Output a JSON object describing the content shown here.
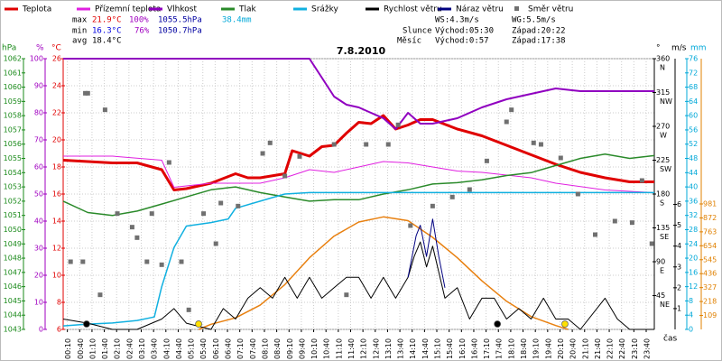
{
  "chart_data": {
    "type": "weather",
    "title": "7.8.2010",
    "x_label": "čas",
    "xlim": [
      0,
      24
    ],
    "xticks": [
      {
        "value": 0.17,
        "label": "00:10"
      },
      {
        "value": 0.67,
        "label": "00:40"
      },
      {
        "value": 1.17,
        "label": "01:10"
      },
      {
        "value": 1.67,
        "label": "01:40"
      },
      {
        "value": 2.17,
        "label": "02:10"
      },
      {
        "value": 2.67,
        "label": "02:40"
      },
      {
        "value": 3.17,
        "label": "03:10"
      },
      {
        "value": 3.67,
        "label": "03:40"
      },
      {
        "value": 4.17,
        "label": "04:10"
      },
      {
        "value": 4.67,
        "label": "04:40"
      },
      {
        "value": 5.17,
        "label": "05:10"
      },
      {
        "value": 5.67,
        "label": "05:40"
      },
      {
        "value": 6.17,
        "label": "06:10"
      },
      {
        "value": 6.67,
        "label": "06:40"
      },
      {
        "value": 7.17,
        "label": "07:10"
      },
      {
        "value": 7.67,
        "label": "07:40"
      },
      {
        "value": 8.17,
        "label": "08:10"
      },
      {
        "value": 8.67,
        "label": "08:40"
      },
      {
        "value": 9.17,
        "label": "09:10"
      },
      {
        "value": 9.67,
        "label": "09:40"
      },
      {
        "value": 10.17,
        "label": "10:10"
      },
      {
        "value": 10.67,
        "label": "10:40"
      },
      {
        "value": 11.17,
        "label": "11:10"
      },
      {
        "value": 11.67,
        "label": "11:40"
      },
      {
        "value": 12.17,
        "label": "12:10"
      },
      {
        "value": 12.67,
        "label": "12:40"
      },
      {
        "value": 13.17,
        "label": "13:10"
      },
      {
        "value": 13.67,
        "label": "13:40"
      },
      {
        "value": 14.17,
        "label": "14:10"
      },
      {
        "value": 14.67,
        "label": "14:40"
      },
      {
        "value": 15.17,
        "label": "15:10"
      },
      {
        "value": 15.67,
        "label": "15:40"
      },
      {
        "value": 16.17,
        "label": "16:10"
      },
      {
        "value": 16.67,
        "label": "16:40"
      },
      {
        "value": 17.17,
        "label": "17:10"
      },
      {
        "value": 17.67,
        "label": "17:40"
      },
      {
        "value": 18.17,
        "label": "18:10"
      },
      {
        "value": 18.67,
        "label": "18:40"
      },
      {
        "value": 19.17,
        "label": "19:10"
      },
      {
        "value": 19.67,
        "label": "19:40"
      },
      {
        "value": 20.17,
        "label": "20:10"
      },
      {
        "value": 20.67,
        "label": "20:40"
      },
      {
        "value": 21.17,
        "label": "21:10"
      },
      {
        "value": 21.67,
        "label": "21:40"
      },
      {
        "value": 22.17,
        "label": "22:10"
      },
      {
        "value": 22.67,
        "label": "22:40"
      },
      {
        "value": 23.17,
        "label": "23:10"
      },
      {
        "value": 23.67,
        "label": "23:40"
      }
    ],
    "grid": true,
    "grid_axis": 2,
    "axes": [
      {
        "unit": "hPa",
        "lim": [
          1043,
          1062
        ],
        "ticks": [
          1043,
          1044,
          1045,
          1046,
          1047,
          1048,
          1049,
          1050,
          1051,
          1052,
          1053,
          1054,
          1055,
          1056,
          1057,
          1058,
          1059,
          1060,
          1061,
          1062
        ],
        "color": "#1a8a1a"
      },
      {
        "unit": "%",
        "lim": [
          0,
          100
        ],
        "ticks": [
          0,
          10,
          20,
          30,
          40,
          50,
          60,
          70,
          80,
          90,
          100
        ],
        "color": "#a000c0"
      },
      {
        "unit": "°C",
        "lim": [
          6,
          26
        ],
        "ticks": [
          6,
          8,
          10,
          12,
          14,
          16,
          18,
          20,
          22,
          24,
          26
        ],
        "color": "#e00000"
      },
      {
        "unit": "°",
        "lim": [
          0,
          360
        ],
        "ticks": [
          45,
          90,
          135,
          180,
          225,
          270,
          315,
          360
        ],
        "tick_names": [
          "NE",
          "E",
          "SE",
          "S",
          "SW",
          "W",
          "NW",
          "N"
        ],
        "color": "#000000"
      },
      {
        "unit": "m/s",
        "lim": [
          0,
          13
        ],
        "ticks": [
          1,
          2,
          3,
          4,
          5,
          6
        ],
        "color": "#000000"
      },
      {
        "unit": "mm",
        "lim": [
          0,
          76
        ],
        "ticks": [
          0,
          4,
          8,
          12,
          16,
          20,
          24,
          28,
          32,
          36,
          40,
          44,
          48,
          52,
          56,
          60,
          64,
          68,
          72,
          76
        ],
        "color": "#00a8d8"
      },
      {
        "lim": [
          0,
          2117
        ],
        "ticks": [
          109,
          218,
          327,
          436,
          545,
          654,
          763,
          872,
          981
        ],
        "color": "#e08000"
      }
    ],
    "series": [
      {
        "name": "Teplota",
        "color": "#e00000",
        "axis": 2,
        "kind": "line",
        "width": 3,
        "x": [
          0,
          1,
          2,
          3,
          4,
          4.5,
          5,
          6,
          7,
          7.5,
          8,
          9,
          9.3,
          10,
          10.5,
          11,
          11.5,
          12,
          12.5,
          13,
          13.5,
          14,
          14.5,
          15,
          16,
          17,
          18,
          19,
          20,
          21,
          22,
          23,
          24
        ],
        "values": [
          18.5,
          18.4,
          18.3,
          18.3,
          17.8,
          16.3,
          16.4,
          16.8,
          17.5,
          17.2,
          17.2,
          17.5,
          19.2,
          18.8,
          19.5,
          19.6,
          20.5,
          21.3,
          21.2,
          21.8,
          20.8,
          21.1,
          21.5,
          21.5,
          20.8,
          20.3,
          19.6,
          18.9,
          18.2,
          17.6,
          17.2,
          16.9,
          16.9
        ]
      },
      {
        "name": "Přízemní teplota",
        "color": "#e020e0",
        "axis": 2,
        "kind": "line",
        "width": 1,
        "x": [
          0,
          2,
          4,
          4.5,
          6,
          8,
          9,
          10,
          11,
          12,
          13,
          14,
          15,
          16,
          17,
          18,
          19,
          20,
          22,
          24
        ],
        "values": [
          18.8,
          18.8,
          18.5,
          16.5,
          16.8,
          16.8,
          17.2,
          17.8,
          17.6,
          18.0,
          18.4,
          18.3,
          18.0,
          17.7,
          17.6,
          17.4,
          17.2,
          16.8,
          16.3,
          16.1
        ]
      },
      {
        "name": "Vlhkost",
        "color": "#9000c0",
        "axis": 1,
        "kind": "line",
        "width": 2,
        "x": [
          0,
          10,
          10.5,
          11,
          11.5,
          12,
          12.5,
          13,
          13.5,
          14,
          14.5,
          15,
          16,
          17,
          18,
          19,
          20,
          21,
          22,
          23,
          24
        ],
        "values": [
          100,
          100,
          93,
          86,
          83,
          82,
          80,
          78,
          74,
          80,
          76,
          76,
          78,
          82,
          85,
          87,
          89,
          88,
          88,
          88,
          88
        ]
      },
      {
        "name": "Tlak",
        "color": "#2a8a2a",
        "axis": 0,
        "kind": "line",
        "width": 1.5,
        "x": [
          0,
          1,
          2,
          3,
          4,
          5,
          6,
          7,
          8,
          9,
          10,
          11,
          12,
          13,
          14,
          15,
          16,
          17,
          18,
          19,
          20,
          21,
          22,
          23,
          24
        ],
        "values": [
          1052,
          1051.2,
          1051,
          1051.3,
          1051.8,
          1052.3,
          1052.8,
          1053,
          1052.6,
          1052.3,
          1052,
          1052.1,
          1052.1,
          1052.5,
          1052.8,
          1053.2,
          1053.3,
          1053.5,
          1053.8,
          1054,
          1054.5,
          1055,
          1055.3,
          1055,
          1055.2
        ]
      },
      {
        "name": "Srážky",
        "color": "#10b0e0",
        "axis": 5,
        "kind": "line",
        "width": 1.5,
        "x": [
          0,
          1,
          2,
          3,
          3.7,
          4,
          4.5,
          5,
          6,
          6.7,
          7,
          8,
          8.5,
          9,
          10,
          24
        ],
        "values": [
          1,
          1.5,
          1.8,
          2.5,
          3.5,
          12,
          23,
          29,
          30,
          31,
          34,
          36,
          37,
          38,
          38.4,
          38.4
        ]
      },
      {
        "name": "Rychlost větru",
        "color": "#000000",
        "axis": 4,
        "kind": "line",
        "width": 1,
        "x": [
          0,
          1,
          2,
          3,
          4,
          4.5,
          5,
          6,
          6.5,
          7,
          7.5,
          8,
          8.5,
          9,
          9.5,
          10,
          10.5,
          11,
          11.5,
          12,
          12.5,
          13,
          13.5,
          14,
          14.25,
          14.5,
          14.75,
          15,
          15.5,
          16,
          16.5,
          17,
          17.5,
          18,
          18.5,
          19,
          19.5,
          20,
          20.5,
          21,
          22,
          22.5,
          23,
          24
        ],
        "values": [
          0.5,
          0.3,
          0,
          0,
          0.5,
          1,
          0.3,
          0,
          1,
          0.5,
          1.5,
          2,
          1.5,
          2.5,
          1.5,
          2.5,
          1.5,
          2,
          2.5,
          2.5,
          1.5,
          2.5,
          1.5,
          2.5,
          3.5,
          4.2,
          3,
          4,
          1.5,
          2,
          0.5,
          1.5,
          1.5,
          0.5,
          1,
          0.5,
          1.5,
          0.5,
          0.5,
          0,
          1.5,
          0.5,
          0,
          0
        ]
      },
      {
        "name": "Náraz větru",
        "color": "#000080",
        "axis": 4,
        "kind": "line",
        "width": 1,
        "x": [
          14,
          14.33,
          14.5,
          14.75,
          15,
          15.25,
          15.5
        ],
        "values": [
          2.5,
          4.5,
          5,
          3.5,
          5.3,
          3.5,
          2
        ]
      },
      {
        "name": "Směr větru",
        "color": "#707070",
        "axis": 3,
        "kind": "squares",
        "x": [
          0.3,
          0.8,
          0.9,
          1.0,
          1.5,
          1.7,
          2.2,
          2.8,
          3.0,
          3.4,
          3.6,
          4.0,
          4.3,
          4.8,
          5.1,
          5.7,
          6.2,
          6.4,
          7.1,
          8.1,
          8.4,
          9.0,
          9.6,
          11.0,
          11.5,
          12.3,
          13.2,
          13.6,
          14.1,
          15.0,
          15.8,
          16.5,
          17.2,
          18.0,
          18.2,
          19.1,
          19.4,
          20.2,
          20.9,
          21.6,
          22.4,
          23.1,
          23.5,
          23.9
        ],
        "values": [
          90,
          90,
          314,
          314,
          46,
          292,
          154,
          136,
          122,
          90,
          154,
          86,
          222,
          90,
          26,
          154,
          114,
          168,
          164,
          234,
          248,
          204,
          230,
          246,
          46,
          246,
          246,
          272,
          138,
          164,
          176,
          186,
          224,
          276,
          292,
          248,
          246,
          228,
          180,
          126,
          144,
          142,
          198,
          114
        ]
      },
      {
        "color": "#e88010",
        "axis": 6,
        "kind": "line",
        "width": 1.5,
        "x": [
          5.5,
          6,
          7,
          8,
          9,
          10,
          11,
          12,
          13,
          14,
          15,
          16,
          17,
          18,
          19,
          20,
          20.5
        ],
        "values": [
          0,
          40,
          90,
          190,
          350,
          560,
          730,
          840,
          880,
          850,
          720,
          560,
          380,
          220,
          100,
          30,
          0
        ]
      }
    ],
    "markers": [
      {
        "x": 0.95,
        "color": "#000000"
      },
      {
        "x": 17.63,
        "color": "#000000"
      },
      {
        "x": 5.5,
        "color": "#ffe000"
      },
      {
        "x": 20.37,
        "color": "#ffe000"
      }
    ],
    "stats": {
      "max": {
        "label": "max",
        "temp": "21.9°C",
        "hum": "100%",
        "press": "1055.5hPa",
        "rain": "38.4mm"
      },
      "min": {
        "label": "min",
        "temp": "16.3°C",
        "hum": "76%",
        "press": "1050.7hPa"
      },
      "avg": {
        "label": "avg",
        "temp": "18.4°C"
      },
      "ws": "WS:4.3m/s",
      "wg": "WG:5.5m/s",
      "sun": {
        "label": "Slunce",
        "rise": "Východ:05:30",
        "set": "Západ:20:22"
      },
      "moon": {
        "label": "Měsíc",
        "rise": "Východ:0:57",
        "set": "Západ:17:38"
      }
    }
  }
}
